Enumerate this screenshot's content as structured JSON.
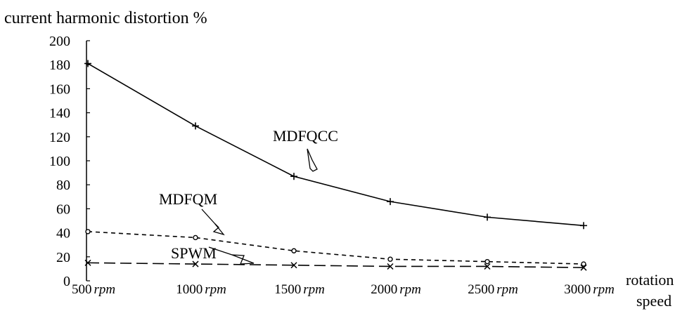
{
  "chart_data": {
    "type": "line",
    "title": "current harmonic distortion %",
    "xlabel": "rotation speed",
    "ylabel": "",
    "categories": [
      "500",
      "1000",
      "1500",
      "2000",
      "2500",
      "3000"
    ],
    "x_unit": "rpm",
    "yticks": [
      "0",
      "20",
      "40",
      "60",
      "80",
      "100",
      "120",
      "140",
      "160",
      "180",
      "200"
    ],
    "ylim": [
      0,
      200
    ],
    "grid": false,
    "legend": "none",
    "series": [
      {
        "name": "MDFQCC",
        "values": [
          181,
          129,
          87,
          66,
          53,
          46
        ],
        "line_style": "solid",
        "marker": "plus"
      },
      {
        "name": "MDFQM",
        "values": [
          41,
          36,
          25,
          18,
          16,
          14
        ],
        "line_style": "dashed",
        "marker": "circle"
      },
      {
        "name": "SPWM",
        "values": [
          15,
          14,
          13,
          12,
          12,
          11
        ],
        "line_style": "long-dash",
        "marker": "cross"
      }
    ]
  }
}
